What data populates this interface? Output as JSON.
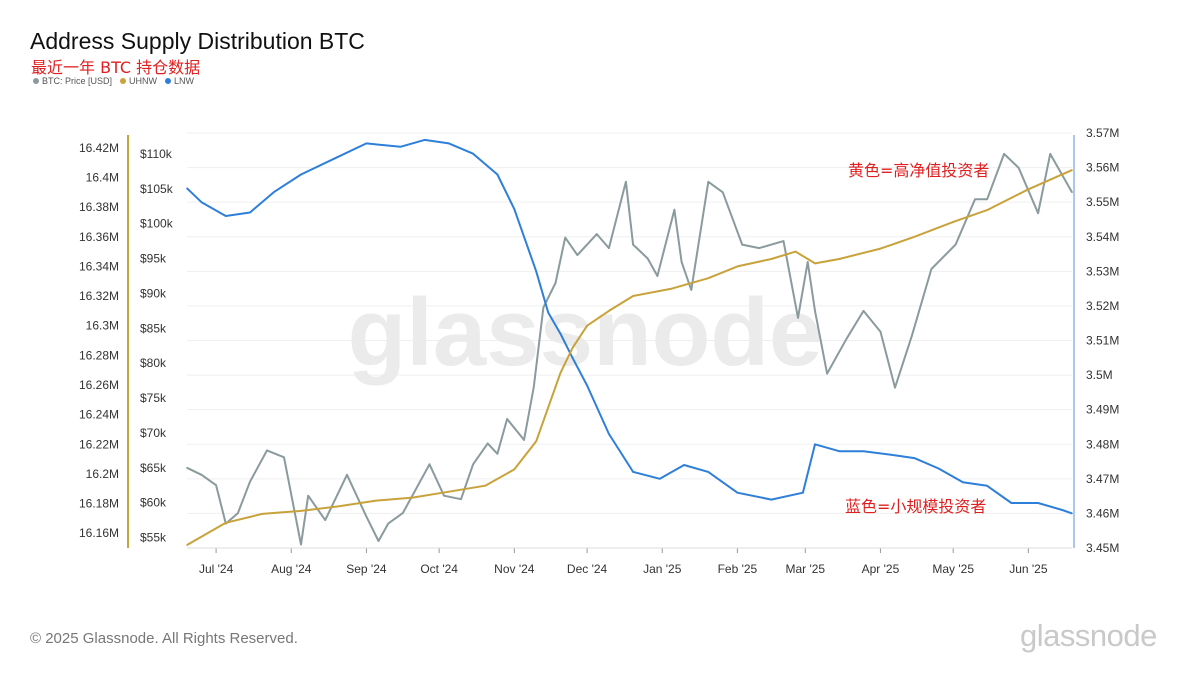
{
  "title": "Address Supply Distribution BTC",
  "subtitle": "最近一年 BTC 持仓数据",
  "legend": [
    {
      "label": "BTC: Price [USD]",
      "color": "#8a9a9d"
    },
    {
      "label": "UHNW",
      "color": "#c8a23a"
    },
    {
      "label": "LNW",
      "color": "#2e7fd9"
    }
  ],
  "watermark": "glassnode",
  "footer": {
    "copyright": "© 2025 Glassnode. All Rights Reserved.",
    "brand": "glassnode"
  },
  "annotations": {
    "uhnw": "黄色=高净值投资者",
    "lnw": "蓝色=小规模投资者"
  },
  "chart_data": {
    "type": "line",
    "x_ticks": [
      "Jul '24",
      "Aug '24",
      "Sep '24",
      "Oct '24",
      "Nov '24",
      "Dec '24",
      "Jan '25",
      "Feb '25",
      "Mar '25",
      "Apr '25",
      "May '25",
      "Jun '25"
    ],
    "x_range": [
      "2024-06-19",
      "2025-06-19"
    ],
    "axes": {
      "left_outer": {
        "series": "UHNW",
        "range": [
          16.15,
          16.43
        ],
        "ticks": [
          "16.16M",
          "16.18M",
          "16.2M",
          "16.22M",
          "16.24M",
          "16.26M",
          "16.28M",
          "16.3M",
          "16.32M",
          "16.34M",
          "16.36M",
          "16.38M",
          "16.4M",
          "16.42M"
        ]
      },
      "left_inner": {
        "series": "BTC: Price [USD]",
        "range": [
          53500,
          113000
        ],
        "ticks": [
          "$55k",
          "$60k",
          "$65k",
          "$70k",
          "$75k",
          "$80k",
          "$85k",
          "$90k",
          "$95k",
          "$100k",
          "$105k",
          "$110k"
        ]
      },
      "right": {
        "series": "LNW",
        "range": [
          3.45,
          3.57
        ],
        "ticks": [
          "3.45M",
          "3.46M",
          "3.47M",
          "3.48M",
          "3.49M",
          "3.5M",
          "3.51M",
          "3.52M",
          "3.53M",
          "3.54M",
          "3.55M",
          "3.56M",
          "3.57M"
        ]
      }
    },
    "grid": true,
    "series": [
      {
        "name": "BTC: Price [USD]",
        "color": "#8a9a9d",
        "axis": "left_inner",
        "x": [
          "2024-06-19",
          "2024-06-25",
          "2024-07-01",
          "2024-07-05",
          "2024-07-10",
          "2024-07-15",
          "2024-07-22",
          "2024-07-29",
          "2024-08-05",
          "2024-08-08",
          "2024-08-15",
          "2024-08-24",
          "2024-09-01",
          "2024-09-06",
          "2024-09-10",
          "2024-09-16",
          "2024-09-27",
          "2024-10-03",
          "2024-10-10",
          "2024-10-15",
          "2024-10-21",
          "2024-10-25",
          "2024-10-29",
          "2024-11-05",
          "2024-11-09",
          "2024-11-13",
          "2024-11-18",
          "2024-11-22",
          "2024-11-27",
          "2024-12-05",
          "2024-12-10",
          "2024-12-17",
          "2024-12-20",
          "2024-12-26",
          "2024-12-30",
          "2025-01-06",
          "2025-01-09",
          "2025-01-13",
          "2025-01-20",
          "2025-01-26",
          "2025-02-03",
          "2025-02-10",
          "2025-02-20",
          "2025-02-26",
          "2025-03-02",
          "2025-03-05",
          "2025-03-10",
          "2025-03-18",
          "2025-03-25",
          "2025-04-01",
          "2025-04-07",
          "2025-04-14",
          "2025-04-22",
          "2025-05-02",
          "2025-05-10",
          "2025-05-15",
          "2025-05-22",
          "2025-05-28",
          "2025-06-05",
          "2025-06-10",
          "2025-06-19"
        ],
        "values": [
          65000,
          64000,
          62500,
          57000,
          58500,
          63000,
          67500,
          66500,
          54000,
          61000,
          57500,
          64000,
          58000,
          54500,
          57000,
          58500,
          65500,
          61000,
          60500,
          65500,
          68500,
          67000,
          72000,
          69000,
          76500,
          88000,
          91500,
          98000,
          95500,
          98500,
          96500,
          106000,
          97000,
          95000,
          92500,
          102000,
          94500,
          90500,
          106000,
          104500,
          97000,
          96500,
          97500,
          86500,
          94500,
          87500,
          78500,
          83500,
          87500,
          84500,
          76500,
          84000,
          93500,
          97000,
          103500,
          103500,
          110000,
          108000,
          101500,
          110000,
          104500
        ]
      },
      {
        "name": "UHNW",
        "color": "#c8a23a",
        "axis": "left_outer",
        "x": [
          "2024-06-19",
          "2024-07-05",
          "2024-07-20",
          "2024-08-05",
          "2024-08-20",
          "2024-09-05",
          "2024-09-20",
          "2024-10-05",
          "2024-10-20",
          "2024-11-01",
          "2024-11-10",
          "2024-11-15",
          "2024-11-20",
          "2024-11-25",
          "2024-12-01",
          "2024-12-10",
          "2024-12-20",
          "2025-01-05",
          "2025-01-20",
          "2025-02-01",
          "2025-02-15",
          "2025-02-25",
          "2025-03-05",
          "2025-03-15",
          "2025-04-01",
          "2025-04-15",
          "2025-05-01",
          "2025-05-15",
          "2025-06-01",
          "2025-06-19"
        ],
        "values": [
          16.152,
          16.167,
          16.173,
          16.175,
          16.178,
          16.182,
          16.184,
          16.188,
          16.192,
          16.203,
          16.222,
          16.245,
          16.268,
          16.285,
          16.3,
          16.31,
          16.32,
          16.325,
          16.332,
          16.34,
          16.345,
          16.35,
          16.342,
          16.345,
          16.352,
          16.36,
          16.37,
          16.378,
          16.392,
          16.405
        ]
      },
      {
        "name": "LNW",
        "color": "#2e7fd9",
        "axis": "right",
        "x": [
          "2024-06-19",
          "2024-06-25",
          "2024-07-05",
          "2024-07-15",
          "2024-07-25",
          "2024-08-05",
          "2024-08-20",
          "2024-09-01",
          "2024-09-15",
          "2024-09-25",
          "2024-10-05",
          "2024-10-15",
          "2024-10-25",
          "2024-11-01",
          "2024-11-10",
          "2024-11-15",
          "2024-11-20",
          "2024-11-25",
          "2024-12-01",
          "2024-12-10",
          "2024-12-20",
          "2024-12-31",
          "2025-01-10",
          "2025-01-20",
          "2025-02-01",
          "2025-02-15",
          "2025-02-28",
          "2025-03-05",
          "2025-03-15",
          "2025-03-25",
          "2025-04-05",
          "2025-04-15",
          "2025-04-25",
          "2025-05-05",
          "2025-05-15",
          "2025-05-25",
          "2025-06-05",
          "2025-06-15",
          "2025-06-19"
        ],
        "values": [
          3.554,
          3.55,
          3.546,
          3.547,
          3.553,
          3.558,
          3.563,
          3.567,
          3.566,
          3.568,
          3.567,
          3.564,
          3.558,
          3.548,
          3.53,
          3.518,
          3.512,
          3.505,
          3.497,
          3.483,
          3.472,
          3.47,
          3.474,
          3.472,
          3.466,
          3.464,
          3.466,
          3.48,
          3.478,
          3.478,
          3.477,
          3.476,
          3.473,
          3.469,
          3.468,
          3.463,
          3.463,
          3.461,
          3.46
        ]
      }
    ]
  }
}
